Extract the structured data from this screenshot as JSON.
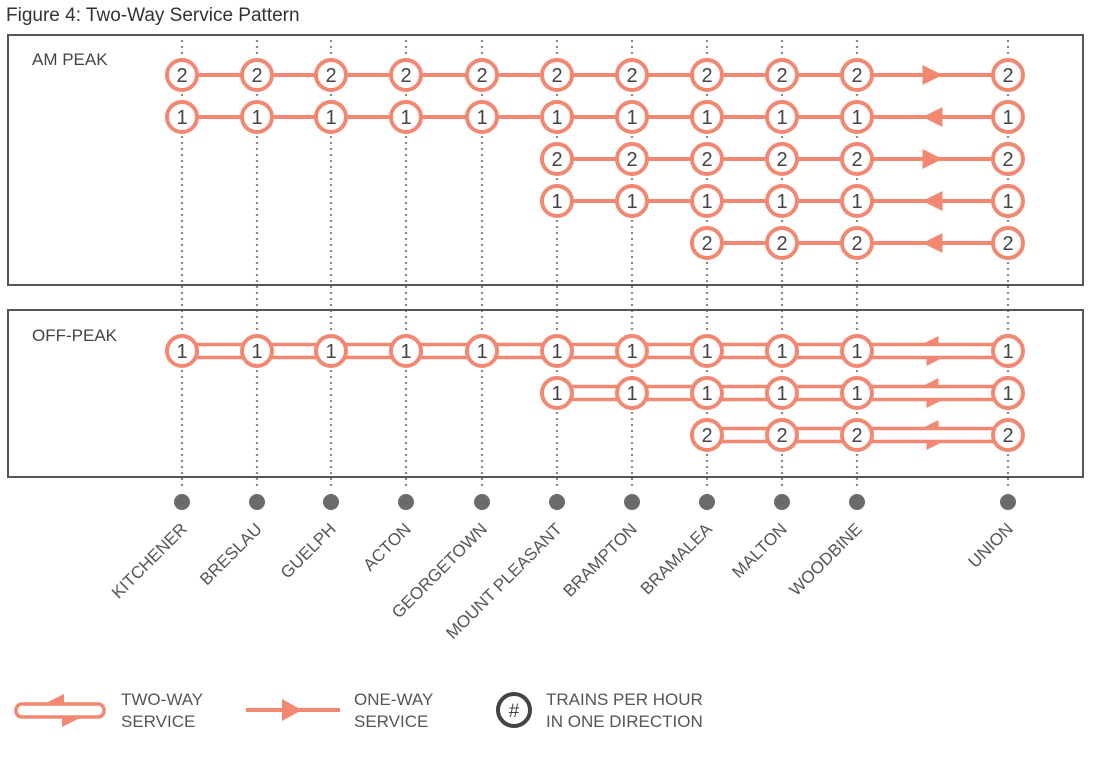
{
  "title": "Figure 4: Two-Way Service Pattern",
  "colors": {
    "service": "#f28872",
    "panel_border": "#555555",
    "station_dot": "#6b6b6b",
    "text": "#555555"
  },
  "stations": [
    "KITCHENER",
    "BRESLAU",
    "GUELPH",
    "ACTON",
    "GEORGETOWN",
    "MOUNT PLEASANT",
    "BRAMPTON",
    "BRAMALEA",
    "MALTON",
    "WOODBINE",
    "UNION"
  ],
  "panels": [
    {
      "label": "AM PEAK",
      "rows": [
        {
          "from_station": 0,
          "trains_per_hour": "2",
          "service": "one-way",
          "direction": "east"
        },
        {
          "from_station": 0,
          "trains_per_hour": "1",
          "service": "one-way",
          "direction": "west"
        },
        {
          "from_station": 5,
          "trains_per_hour": "2",
          "service": "one-way",
          "direction": "east"
        },
        {
          "from_station": 5,
          "trains_per_hour": "1",
          "service": "one-way",
          "direction": "west"
        },
        {
          "from_station": 7,
          "trains_per_hour": "2",
          "service": "one-way",
          "direction": "west"
        }
      ]
    },
    {
      "label": "OFF-PEAK",
      "rows": [
        {
          "from_station": 0,
          "trains_per_hour": "1",
          "service": "two-way"
        },
        {
          "from_station": 5,
          "trains_per_hour": "1",
          "service": "two-way"
        },
        {
          "from_station": 7,
          "trains_per_hour": "2",
          "service": "two-way"
        }
      ]
    }
  ],
  "legend": {
    "two_way": [
      "TWO-WAY",
      "SERVICE"
    ],
    "one_way": [
      "ONE-WAY",
      "SERVICE"
    ],
    "hash_symbol": "#",
    "trains": [
      "TRAINS PER HOUR",
      "IN ONE DIRECTION"
    ]
  }
}
